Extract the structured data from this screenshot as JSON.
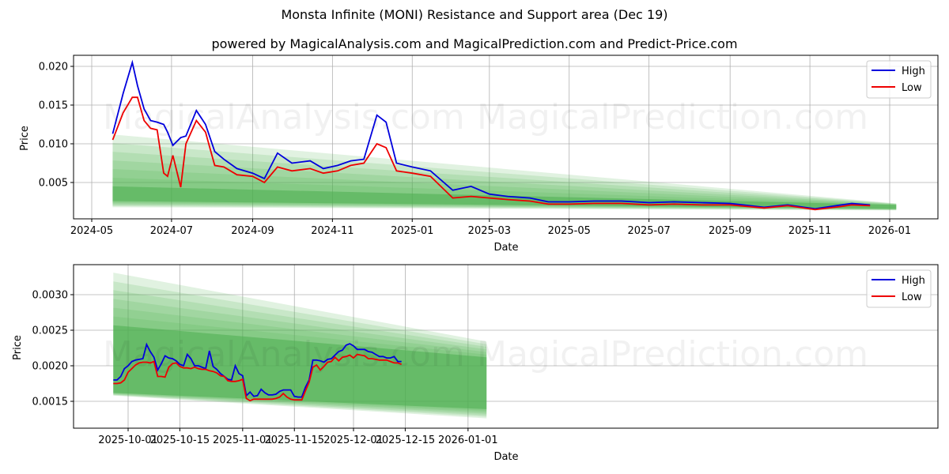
{
  "header": {
    "title": "Monsta Infinite (MONI) Resistance and Support area (Dec 19)",
    "subtitle": "powered by MagicalAnalysis.com and MagicalPrediction.com and Predict-Price.com"
  },
  "watermarks": [
    "MagicalAnalysis.com",
    "MagicalPrediction.com"
  ],
  "colors": {
    "high": "#0000dd",
    "low": "#ee0000",
    "band": "#4caf50",
    "grid": "#b0b0b0"
  },
  "legend": {
    "high_label": "High",
    "low_label": "Low"
  },
  "chart_data": [
    {
      "type": "line",
      "title": "Monsta Infinite (MONI) Resistance and Support area (Dec 19)",
      "xlabel": "Date",
      "ylabel": "Price",
      "ylim": [
        0.0,
        0.0215
      ],
      "grid": true,
      "legend_position": "upper right",
      "x_ticks": [
        "2024-05",
        "2024-07",
        "2024-09",
        "2024-11",
        "2025-01",
        "2025-03",
        "2025-05",
        "2025-07",
        "2025-09",
        "2025-11",
        "2026-01"
      ],
      "y_ticks": [
        "0.005",
        "0.010",
        "0.015",
        "0.020"
      ],
      "x": [
        "2024-05-17",
        "2024-05-25",
        "2024-06-01",
        "2024-06-05",
        "2024-06-10",
        "2024-06-15",
        "2024-06-20",
        "2024-06-25",
        "2024-06-28",
        "2024-07-02",
        "2024-07-08",
        "2024-07-12",
        "2024-07-20",
        "2024-07-27",
        "2024-08-03",
        "2024-08-10",
        "2024-08-20",
        "2024-09-01",
        "2024-09-10",
        "2024-09-20",
        "2024-10-01",
        "2024-10-15",
        "2024-10-25",
        "2024-11-05",
        "2024-11-15",
        "2024-11-25",
        "2024-12-05",
        "2024-12-12",
        "2024-12-20",
        "2025-01-01",
        "2025-01-15",
        "2025-02-01",
        "2025-02-15",
        "2025-03-01",
        "2025-03-15",
        "2025-04-01",
        "2025-04-15",
        "2025-05-01",
        "2025-05-20",
        "2025-06-10",
        "2025-07-01",
        "2025-07-20",
        "2025-08-10",
        "2025-09-01",
        "2025-09-27",
        "2025-10-15",
        "2025-11-05",
        "2025-11-25",
        "2025-12-03",
        "2025-12-17"
      ],
      "series": [
        {
          "name": "High",
          "values": [
            0.0113,
            0.0165,
            0.0205,
            0.0175,
            0.0145,
            0.013,
            0.0128,
            0.0125,
            0.0115,
            0.0098,
            0.0108,
            0.011,
            0.0143,
            0.0125,
            0.009,
            0.008,
            0.0068,
            0.0062,
            0.0055,
            0.0088,
            0.0075,
            0.0078,
            0.0068,
            0.0072,
            0.0078,
            0.008,
            0.0137,
            0.0128,
            0.0075,
            0.007,
            0.0065,
            0.004,
            0.0045,
            0.0035,
            0.0032,
            0.003,
            0.0025,
            0.0025,
            0.0026,
            0.0026,
            0.0024,
            0.0025,
            0.0024,
            0.0023,
            0.0018,
            0.0021,
            0.0016,
            0.0021,
            0.0023,
            0.0021
          ]
        },
        {
          "name": "Low",
          "values": [
            0.0105,
            0.014,
            0.016,
            0.016,
            0.013,
            0.012,
            0.0118,
            0.0062,
            0.0058,
            0.0085,
            0.0044,
            0.01,
            0.013,
            0.0115,
            0.0072,
            0.007,
            0.006,
            0.0058,
            0.005,
            0.007,
            0.0065,
            0.0068,
            0.0062,
            0.0065,
            0.0072,
            0.0075,
            0.01,
            0.0095,
            0.0065,
            0.0062,
            0.0058,
            0.003,
            0.0032,
            0.003,
            0.0028,
            0.0026,
            0.0022,
            0.0022,
            0.0023,
            0.0023,
            0.0021,
            0.0022,
            0.0021,
            0.0021,
            0.0017,
            0.002,
            0.0015,
            0.0019,
            0.0021,
            0.002
          ]
        }
      ],
      "support_resistance_bands": {
        "x_start": "2024-05-17",
        "x_end": "2026-01-06",
        "outer_upper": [
          0.0112,
          0.0023
        ],
        "outer_lower": [
          0.0018,
          0.0014
        ],
        "inner_upper": [
          0.0045,
          0.0021
        ],
        "inner_lower": [
          0.0026,
          0.0016
        ]
      }
    },
    {
      "type": "line",
      "title": "",
      "xlabel": "Date",
      "ylabel": "Price",
      "ylim": [
        0.00114,
        0.00342
      ],
      "grid": true,
      "legend_position": "upper right",
      "x_ticks": [
        "2025-10-01",
        "2025-10-15",
        "2025-11-01",
        "2025-11-15",
        "2025-12-01",
        "2025-12-15",
        "2026-01-01"
      ],
      "y_ticks": [
        "0.0015",
        "0.0020",
        "0.0025",
        "0.0030"
      ],
      "x_start": "2025-09-27",
      "x_step_days": 1,
      "series": [
        {
          "name": "High",
          "values": [
            0.0018,
            0.0018,
            0.00185,
            0.00196,
            0.002,
            0.00206,
            0.00208,
            0.00209,
            0.0021,
            0.0023,
            0.0022,
            0.00212,
            0.00194,
            0.00203,
            0.00214,
            0.00211,
            0.0021,
            0.00207,
            0.00202,
            0.002,
            0.00216,
            0.0021,
            0.002,
            0.002,
            0.00198,
            0.00196,
            0.00221,
            0.00199,
            0.00195,
            0.00189,
            0.00185,
            0.00181,
            0.0018,
            0.002,
            0.00189,
            0.00186,
            0.00158,
            0.00163,
            0.00157,
            0.00158,
            0.00167,
            0.00162,
            0.00159,
            0.00159,
            0.0016,
            0.00164,
            0.00166,
            0.00166,
            0.00166,
            0.00157,
            0.00156,
            0.00156,
            0.0017,
            0.0018,
            0.00208,
            0.00208,
            0.00207,
            0.00205,
            0.00209,
            0.0021,
            0.00215,
            0.0022,
            0.00222,
            0.00229,
            0.00231,
            0.00228,
            0.00223,
            0.00223,
            0.00223,
            0.0022,
            0.00219,
            0.00216,
            0.00213,
            0.00213,
            0.00211,
            0.00211,
            0.00213,
            0.00206,
            0.00206
          ]
        },
        {
          "name": "Low",
          "values": [
            0.00175,
            0.00175,
            0.00176,
            0.0018,
            0.00191,
            0.00196,
            0.00201,
            0.00204,
            0.00205,
            0.00205,
            0.00204,
            0.00206,
            0.00185,
            0.00185,
            0.00184,
            0.00198,
            0.00203,
            0.00204,
            0.00199,
            0.00197,
            0.00197,
            0.00196,
            0.00198,
            0.00196,
            0.00195,
            0.00195,
            0.00193,
            0.00192,
            0.0019,
            0.00186,
            0.00185,
            0.00179,
            0.00178,
            0.00178,
            0.00179,
            0.00181,
            0.00154,
            0.00151,
            0.00153,
            0.00153,
            0.00153,
            0.00153,
            0.00153,
            0.00153,
            0.00154,
            0.00156,
            0.00161,
            0.00156,
            0.00153,
            0.00152,
            0.00152,
            0.00152,
            0.00165,
            0.00177,
            0.00198,
            0.00201,
            0.00194,
            0.00199,
            0.00205,
            0.00206,
            0.00212,
            0.00207,
            0.00212,
            0.00213,
            0.00215,
            0.00211,
            0.00216,
            0.00215,
            0.00214,
            0.0021,
            0.0021,
            0.00209,
            0.00208,
            0.00208,
            0.00208,
            0.00206,
            0.00204,
            0.00204,
            0.00202
          ]
        }
      ],
      "support_resistance_bands": {
        "x_start": "2025-09-27",
        "x_end": "2026-01-06",
        "outer_upper": [
          0.00331,
          0.00234
        ],
        "outer_lower": [
          0.00158,
          0.00126
        ],
        "inner_upper": [
          0.00257,
          0.00212
        ],
        "inner_lower": [
          0.00162,
          0.00139
        ]
      }
    }
  ]
}
